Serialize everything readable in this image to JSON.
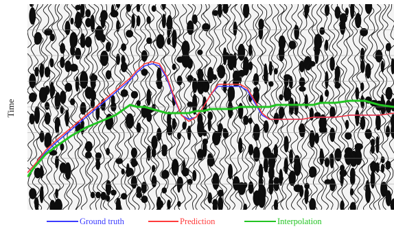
{
  "chart_data": {
    "type": "line",
    "background": "seismic-wiggle-section",
    "ylabel": "Time",
    "xlabel": "",
    "x": [
      0,
      0.02,
      0.05,
      0.08,
      0.12,
      0.16,
      0.2,
      0.24,
      0.28,
      0.3,
      0.32,
      0.34,
      0.36,
      0.38,
      0.4,
      0.42,
      0.44,
      0.46,
      0.48,
      0.5,
      0.52,
      0.54,
      0.56,
      0.58,
      0.6,
      0.62,
      0.64,
      0.66,
      0.68,
      0.7,
      0.72,
      0.75,
      0.78,
      0.8,
      0.84,
      0.88,
      0.92,
      0.96,
      1.0
    ],
    "series": [
      {
        "name": "Ground truth",
        "color": "#3b3bff",
        "values": [
          0.18,
          0.22,
          0.28,
          0.33,
          0.39,
          0.45,
          0.51,
          0.57,
          0.63,
          0.67,
          0.7,
          0.71,
          0.7,
          0.64,
          0.54,
          0.46,
          0.44,
          0.45,
          0.5,
          0.56,
          0.6,
          0.6,
          0.6,
          0.6,
          0.58,
          0.52,
          0.46,
          0.44,
          0.44,
          0.44,
          0.44,
          0.44,
          0.45,
          0.45,
          0.45,
          0.46,
          0.46,
          0.46,
          0.47
        ]
      },
      {
        "name": "Prediction",
        "color": "#ff3b3b",
        "values": [
          0.18,
          0.22,
          0.29,
          0.34,
          0.4,
          0.46,
          0.52,
          0.58,
          0.64,
          0.68,
          0.71,
          0.72,
          0.71,
          0.65,
          0.55,
          0.46,
          0.43,
          0.45,
          0.5,
          0.56,
          0.61,
          0.61,
          0.61,
          0.61,
          0.59,
          0.53,
          0.47,
          0.44,
          0.44,
          0.44,
          0.44,
          0.44,
          0.45,
          0.45,
          0.45,
          0.46,
          0.46,
          0.46,
          0.47
        ]
      },
      {
        "name": "Interpolation",
        "color": "#22c422",
        "values": [
          0.16,
          0.21,
          0.27,
          0.31,
          0.36,
          0.4,
          0.43,
          0.46,
          0.51,
          0.5,
          0.5,
          0.49,
          0.48,
          0.47,
          0.47,
          0.47,
          0.47,
          0.48,
          0.48,
          0.49,
          0.49,
          0.49,
          0.49,
          0.5,
          0.5,
          0.5,
          0.5,
          0.5,
          0.51,
          0.51,
          0.51,
          0.51,
          0.51,
          0.52,
          0.52,
          0.53,
          0.53,
          0.51,
          0.5
        ]
      }
    ],
    "legend_position": "bottom",
    "grid": true
  }
}
